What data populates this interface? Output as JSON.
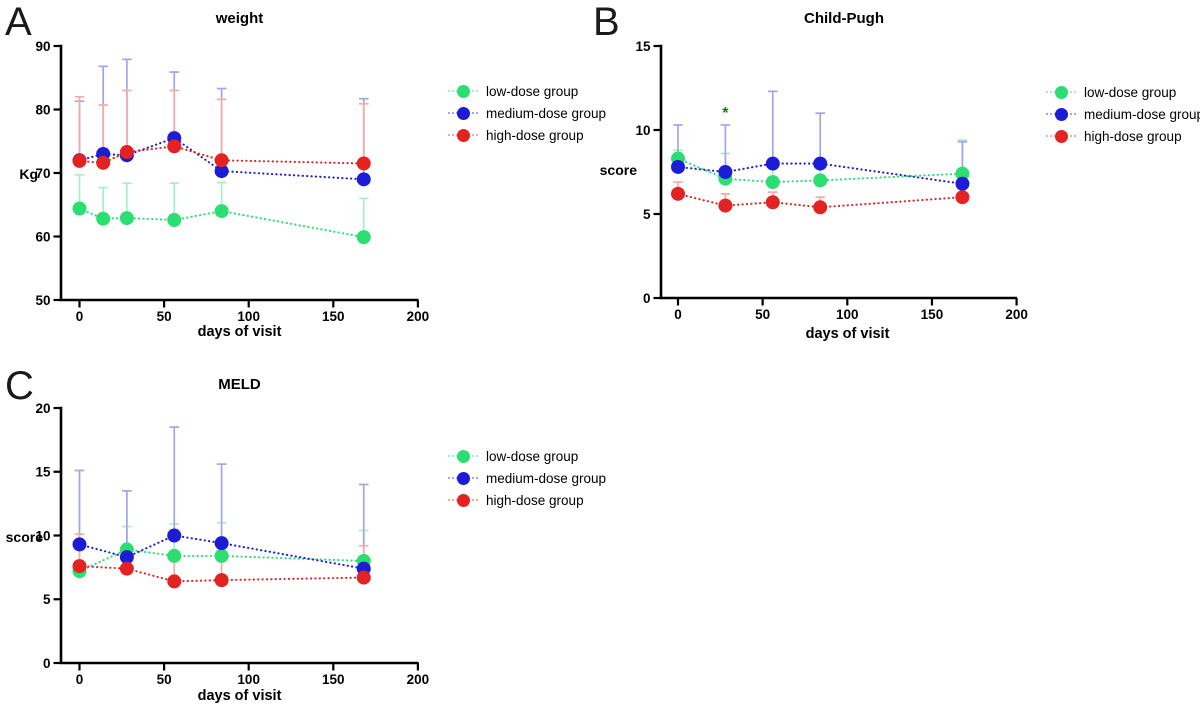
{
  "figure": {
    "background": "#ffffff",
    "text_color": "#000000"
  },
  "legend": {
    "position": "right-of-plot",
    "items": [
      {
        "label": "low-dose group",
        "color": "#2BDE71",
        "light": "#A8EFC8"
      },
      {
        "label": "medium-dose group",
        "color": "#1C1CD6",
        "light": "#A2A6E8"
      },
      {
        "label": "high-dose group",
        "color": "#E32222",
        "light": "#F2ADA4"
      }
    ]
  },
  "chart_data": [
    {
      "panel_label": "A",
      "type": "line",
      "title": "weight",
      "xlabel": "days of visit",
      "ylabel": "Kg",
      "line_style": "dotted",
      "marker": "circle",
      "error_bars": "upper-only",
      "x_days": [
        0,
        14,
        28,
        56,
        84,
        168
      ],
      "xticks": [
        0,
        50,
        100,
        150,
        200
      ],
      "xlim": [
        0,
        200
      ],
      "ylim": [
        50,
        90
      ],
      "yticks": [
        50,
        60,
        70,
        80,
        90
      ],
      "series": [
        {
          "name": "low-dose group",
          "color": "#2BDE71",
          "light": "#A8EFC8",
          "values": [
            64.4,
            62.8,
            62.9,
            62.6,
            64.0,
            59.9
          ],
          "err_upper": [
            69.7,
            67.7,
            68.4,
            68.4,
            68.5,
            66.0
          ]
        },
        {
          "name": "medium-dose group",
          "color": "#1C1CD6",
          "light": "#A2A6E8",
          "values": [
            72.0,
            73.0,
            72.8,
            75.5,
            70.3,
            69.0
          ],
          "err_upper": [
            81.3,
            86.8,
            87.9,
            85.9,
            83.3,
            81.7
          ]
        },
        {
          "name": "high-dose group",
          "color": "#E32222",
          "light": "#F2ADA4",
          "values": [
            71.9,
            71.6,
            73.3,
            74.2,
            72.0,
            71.5
          ],
          "err_upper": [
            82.0,
            80.7,
            83.0,
            83.0,
            81.6,
            80.9
          ]
        }
      ],
      "annotations": []
    },
    {
      "panel_label": "B",
      "type": "line",
      "title": "Child-Pugh",
      "xlabel": "days of visit",
      "ylabel": "score",
      "line_style": "dotted",
      "marker": "circle",
      "error_bars": "upper-only",
      "x_days": [
        0,
        28,
        56,
        84,
        168
      ],
      "xticks": [
        0,
        50,
        100,
        150,
        200
      ],
      "xlim": [
        0,
        200
      ],
      "ylim": [
        0,
        15
      ],
      "yticks": [
        0,
        5,
        10,
        15
      ],
      "series": [
        {
          "name": "low-dose group",
          "color": "#2BDE71",
          "light": "#A8EFC8",
          "values": [
            8.3,
            7.1,
            6.9,
            7.0,
            7.4
          ],
          "err_upper": [
            8.8,
            8.6,
            8.0,
            8.0,
            9.4
          ]
        },
        {
          "name": "medium-dose group",
          "color": "#1C1CD6",
          "light": "#A2A6E8",
          "values": [
            7.8,
            7.5,
            8.0,
            8.0,
            6.8
          ],
          "err_upper": [
            10.3,
            10.3,
            12.3,
            11.0,
            9.3
          ]
        },
        {
          "name": "high-dose group",
          "color": "#E32222",
          "light": "#F2ADA4",
          "values": [
            6.2,
            5.5,
            5.7,
            5.4,
            6.0
          ],
          "err_upper": [
            6.9,
            6.2,
            6.3,
            6.0,
            6.6
          ]
        }
      ],
      "annotations": [
        {
          "text": "*",
          "x": 28,
          "y": 11.0,
          "color": "#167A16"
        }
      ]
    },
    {
      "panel_label": "C",
      "type": "line",
      "title": "MELD",
      "xlabel": "days of visit",
      "ylabel": "score",
      "line_style": "dotted",
      "marker": "circle",
      "error_bars": "upper-only",
      "x_days": [
        0,
        28,
        56,
        84,
        168
      ],
      "xticks": [
        0,
        50,
        100,
        150,
        200
      ],
      "xlim": [
        0,
        200
      ],
      "ylim": [
        0,
        20
      ],
      "yticks": [
        0,
        5,
        10,
        15,
        20
      ],
      "series": [
        {
          "name": "low-dose group",
          "color": "#2BDE71",
          "light": "#A8EFC8",
          "values": [
            7.2,
            8.9,
            8.4,
            8.4,
            8.0
          ],
          "err_upper": [
            10.1,
            10.7,
            10.9,
            11.0,
            10.4
          ]
        },
        {
          "name": "medium-dose group",
          "color": "#1C1CD6",
          "light": "#A2A6E8",
          "values": [
            9.3,
            8.3,
            10.0,
            9.4,
            7.4
          ],
          "err_upper": [
            15.1,
            13.5,
            18.5,
            15.6,
            14.0
          ]
        },
        {
          "name": "high-dose group",
          "color": "#E32222",
          "light": "#F2ADA4",
          "values": [
            7.6,
            7.4,
            6.4,
            6.5,
            6.7
          ],
          "err_upper": [
            10.1,
            8.6,
            8.3,
            8.3,
            9.2
          ]
        }
      ],
      "annotations": []
    }
  ]
}
